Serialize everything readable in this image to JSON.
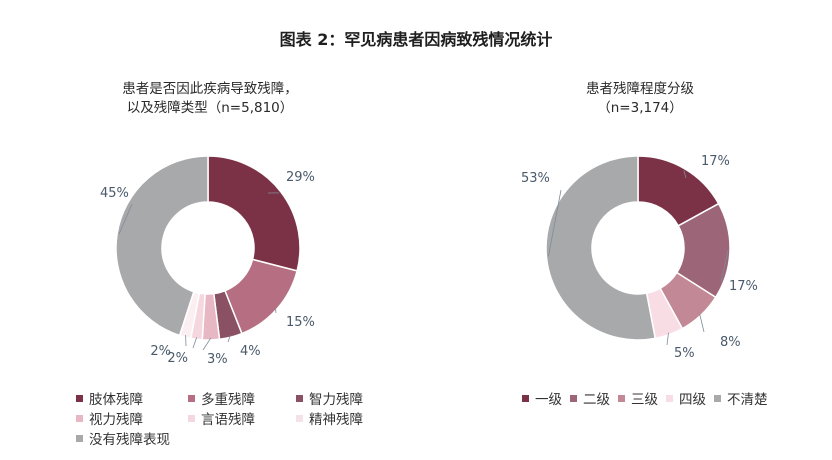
{
  "title": "图表 2：罕见病患者因病致残情况统计",
  "chart_data": [
    {
      "type": "pie",
      "title": "患者是否因此疾病导致残障，",
      "subtitle": "以及残障类型（n=5,810）",
      "slices": [
        {
          "name": "肢体残障",
          "value": 29,
          "label": "29%",
          "color": "#7c3246"
        },
        {
          "name": "多重残障",
          "value": 15,
          "label": "15%",
          "color": "#b66f82"
        },
        {
          "name": "智力残障",
          "value": 4,
          "label": "4%",
          "color": "#8a5063"
        },
        {
          "name": "视力残障",
          "value": 3,
          "label": "3%",
          "color": "#e7b7c4"
        },
        {
          "name": "言语残障",
          "value": 2,
          "label": "2%",
          "color": "#f5d7df"
        },
        {
          "name": "精神残障",
          "value": 2,
          "label": "2%",
          "color": "#fbeff2"
        },
        {
          "name": "没有残障表现",
          "value": 45,
          "label": "45%",
          "color": "#a8a9ab"
        }
      ]
    },
    {
      "type": "pie",
      "title": "患者残障程度分级",
      "subtitle": "（n=3,174）",
      "slices": [
        {
          "name": "一级",
          "value": 17,
          "label": "17%",
          "color": "#7c3246"
        },
        {
          "name": "二级",
          "value": 17,
          "label": "17%",
          "color": "#9d6578"
        },
        {
          "name": "三级",
          "value": 8,
          "label": "8%",
          "color": "#c38896"
        },
        {
          "name": "四级",
          "value": 5,
          "label": "5%",
          "color": "#f8dde4"
        },
        {
          "name": "不清楚",
          "value": 53,
          "label": "53%",
          "color": "#a8a9ab"
        }
      ]
    }
  ]
}
